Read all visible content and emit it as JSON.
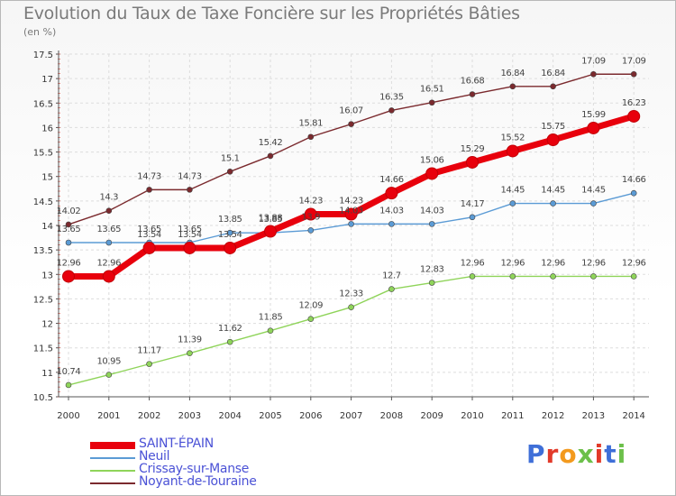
{
  "title": "Evolution du Taux de Taxe Foncière sur les Propriétés Bâties",
  "subtitle": "(en %)",
  "logo": "Proxiti",
  "logo_colors": [
    "#3f6fd8",
    "#e23a2a",
    "#f39a1e",
    "#6cc04a",
    "#e23a2a",
    "#3f6fd8",
    "#6cc04a"
  ],
  "chart_data": {
    "type": "line",
    "title": "Evolution du Taux de Taxe Foncière sur les Propriétés Bâties",
    "ylabel": "(en %)",
    "xlabel": "",
    "x": [
      "2000",
      "2001",
      "2002",
      "2003",
      "2004",
      "2005",
      "2006",
      "2007",
      "2008",
      "2009",
      "2010",
      "2011",
      "2012",
      "2013",
      "2014"
    ],
    "ylim": [
      10.5,
      17.5
    ],
    "yticks": [
      "10.5",
      "11",
      "11.5",
      "12",
      "12.5",
      "13",
      "13.5",
      "14",
      "14.5",
      "15",
      "15.5",
      "16",
      "16.5",
      "17",
      "17.5"
    ],
    "grid": true,
    "legend_position": "bottom-left",
    "series": [
      {
        "name": "SAINT-ÉPAIN",
        "color": "#e8000c",
        "values": [
          12.96,
          12.96,
          13.54,
          13.54,
          13.54,
          13.88,
          14.23,
          14.23,
          14.66,
          15.06,
          15.29,
          15.52,
          15.75,
          15.99,
          16.23
        ],
        "labels": [
          "12.96",
          "12.96",
          "13.54",
          "13.54",
          "13.54",
          "13.88",
          "14.23",
          "14.23",
          "14.66",
          "15.06",
          "15.29",
          "15.52",
          "15.75",
          "15.99",
          "16.23"
        ]
      },
      {
        "name": "Neuil",
        "color": "#5b9bd5",
        "values": [
          13.65,
          13.65,
          13.65,
          13.65,
          13.85,
          13.85,
          13.9,
          14.03,
          14.03,
          14.03,
          14.17,
          14.45,
          14.45,
          14.45,
          14.66
        ],
        "labels": [
          "13.65",
          "13.65",
          "13.65",
          "13.65",
          "13.85",
          "13.85",
          "13.9",
          "14.03",
          "14.03",
          "14.03",
          "14.17",
          "14.45",
          "14.45",
          "14.45",
          "14.66"
        ]
      },
      {
        "name": "Crissay-sur-Manse",
        "color": "#8fd45a",
        "values": [
          10.74,
          10.95,
          11.17,
          11.39,
          11.62,
          11.85,
          12.09,
          12.33,
          12.7,
          12.83,
          12.96,
          12.96,
          12.96,
          12.96,
          12.96
        ],
        "labels": [
          "10.74",
          "10.95",
          "11.17",
          "11.39",
          "11.62",
          "11.85",
          "12.09",
          "12.33",
          "12.7",
          "12.83",
          "12.96",
          "12.96",
          "12.96",
          "12.96",
          "12.96"
        ]
      },
      {
        "name": "Noyant-de-Touraine",
        "color": "#7b2a2e",
        "values": [
          14.02,
          14.3,
          14.73,
          14.73,
          15.1,
          15.42,
          15.81,
          16.07,
          16.35,
          16.51,
          16.68,
          16.84,
          16.84,
          17.09,
          17.09
        ],
        "labels": [
          "14.02",
          "14.3",
          "14.73",
          "14.73",
          "15.1",
          "15.42",
          "15.81",
          "16.07",
          "16.35",
          "16.51",
          "16.68",
          "16.84",
          "16.84",
          "17.09",
          "17.09"
        ]
      }
    ]
  }
}
